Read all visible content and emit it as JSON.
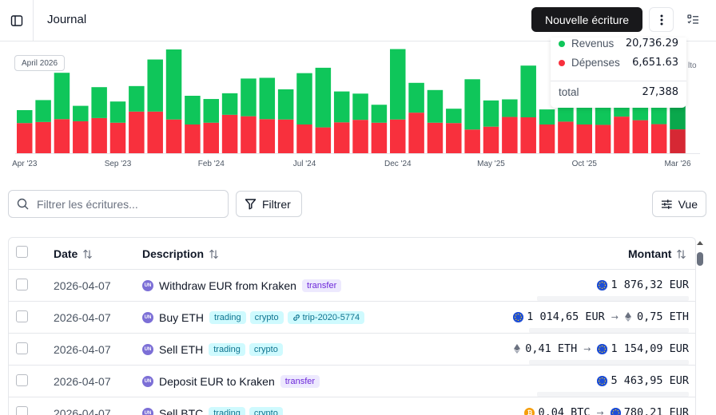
{
  "header": {
    "title": "Journal",
    "new_entry_label": "Nouvelle écriture"
  },
  "chart_data": {
    "type": "bar",
    "stacked": true,
    "month_badge": "April 2026",
    "tick_labels": [
      "Apr '23",
      "Sep '23",
      "Feb '24",
      "Jul '24",
      "Dec '24",
      "May '25",
      "Oct '25",
      "Mar '26"
    ],
    "tick_indices": [
      0,
      5,
      10,
      15,
      20,
      25,
      30,
      35
    ],
    "ylim": [
      0,
      28000
    ],
    "series": [
      {
        "name": "Dépenses",
        "color": "#f8303d",
        "values": [
          8400,
          8700,
          9500,
          8900,
          9800,
          8500,
          11600,
          11600,
          9400,
          8000,
          8500,
          10700,
          10300,
          9500,
          9400,
          8000,
          7200,
          8600,
          9300,
          8500,
          9400,
          11300,
          8500,
          8400,
          6600,
          7400,
          10100,
          10000,
          8000,
          8800,
          8000,
          7900,
          10200,
          9200,
          8100,
          6651.63
        ]
      },
      {
        "name": "Revenus",
        "color": "#0fc65a",
        "values": [
          3600,
          6100,
          12900,
          4300,
          8600,
          5900,
          7100,
          14500,
          19500,
          8000,
          6600,
          6000,
          10500,
          11500,
          8400,
          14300,
          16600,
          8600,
          7300,
          5000,
          19600,
          8300,
          9100,
          4000,
          14000,
          7300,
          4900,
          14400,
          4200,
          7200,
          11400,
          5600,
          15300,
          16800,
          6900,
          20736.29
        ]
      }
    ],
    "tooltip": {
      "revenus_label": "Revenus",
      "revenus_value": "20,736.29",
      "depenses_label": "Dépenses",
      "depenses_value": "6,651.63",
      "total_label": "total",
      "total_value": "27,388",
      "extra_text": "lto"
    }
  },
  "toolbar": {
    "search_placeholder": "Filtrer les écritures...",
    "filter_label": "Filtrer",
    "view_label": "Vue"
  },
  "table": {
    "col_date": "Date",
    "col_description": "Description",
    "col_amount": "Montant",
    "account_badge": "UN",
    "rows": [
      {
        "date": "2026-04-07",
        "description": "Withdraw EUR from Kraken",
        "tags": [
          "transfer"
        ],
        "amount_from": "1 876,32 EUR",
        "from_cur": "eur"
      },
      {
        "date": "2026-04-07",
        "description": "Buy ETH",
        "tags": [
          "trading",
          "crypto"
        ],
        "trip": "trip-2020-5774",
        "amount_from": "1 014,65 EUR",
        "from_cur": "eur",
        "amount_to": "0,75 ETH",
        "to_cur": "eth"
      },
      {
        "date": "2026-04-07",
        "description": "Sell ETH",
        "tags": [
          "trading",
          "crypto"
        ],
        "amount_from": "0,41 ETH",
        "from_cur": "eth",
        "amount_to": "1 154,09 EUR",
        "to_cur": "eur"
      },
      {
        "date": "2026-04-07",
        "description": "Deposit EUR to Kraken",
        "tags": [
          "transfer"
        ],
        "amount_from": "5 463,95 EUR",
        "from_cur": "eur"
      },
      {
        "date": "2026-04-07",
        "description": "Sell BTC",
        "tags": [
          "trading",
          "crypto"
        ],
        "amount_from": "0,04 BTC",
        "from_cur": "btc",
        "amount_to": "780,21 EUR",
        "to_cur": "eur"
      }
    ]
  }
}
